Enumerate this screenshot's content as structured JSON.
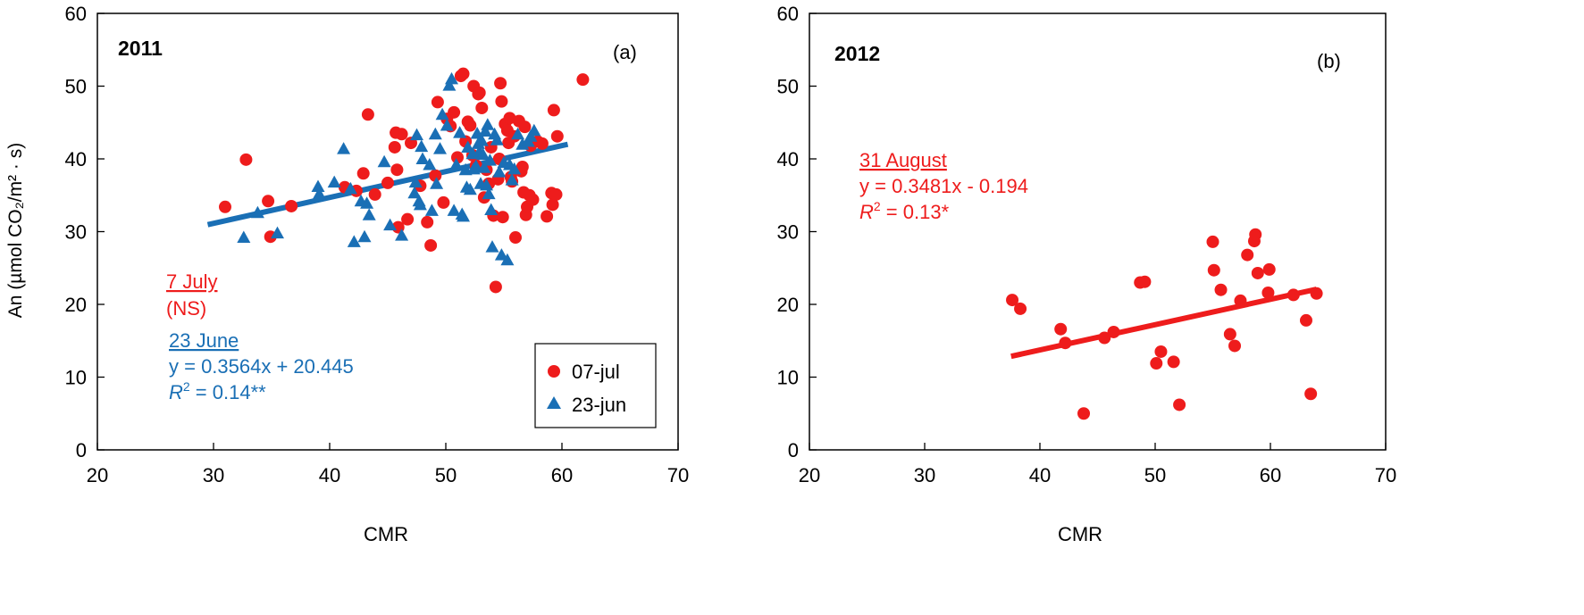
{
  "figure": {
    "shared_ylabel": "An (µmol CO₂/m² · s)"
  },
  "chart_data": [
    {
      "type": "scatter",
      "panel_label": "(a)",
      "year_label": "2011",
      "xlabel": "CMR",
      "xlim": [
        20,
        70
      ],
      "ylim": [
        0,
        60
      ],
      "xticks": [
        20,
        30,
        40,
        50,
        60,
        70
      ],
      "yticks": [
        0,
        10,
        20,
        30,
        40,
        50,
        60
      ],
      "legend": {
        "placement": "bottom-right",
        "entries": [
          "07-jul",
          "23-jun"
        ]
      },
      "annotations": {
        "jul_title": "7 July",
        "jul_note": "(NS)",
        "jun_title": "23 June",
        "jun_eq": "y = 0.3564x + 20.445",
        "jun_r2_label": "R",
        "jun_r2_sup": "2",
        "jun_r2_value": " = 0.14**"
      },
      "colors": {
        "jul": "#ee1c1c",
        "jun": "#1a6fb5"
      },
      "series": [
        {
          "name": "07-jul",
          "marker": "circle",
          "color": "#ee1c1c",
          "points": [
            [
              31,
              33.4
            ],
            [
              32.8,
              39.9
            ],
            [
              34.7,
              34.2
            ],
            [
              34.9,
              29.3
            ],
            [
              36.7,
              33.5
            ],
            [
              41.3,
              36.1
            ],
            [
              42.3,
              35.6
            ],
            [
              42.9,
              38
            ],
            [
              43.3,
              46.1
            ],
            [
              43.9,
              35.1
            ],
            [
              45,
              36.7
            ],
            [
              45.6,
              41.6
            ],
            [
              45.7,
              43.6
            ],
            [
              45.8,
              38.5
            ],
            [
              45.9,
              30.6
            ],
            [
              46.2,
              43.4
            ],
            [
              46.7,
              31.7
            ],
            [
              47,
              42.2
            ],
            [
              47.8,
              36.3
            ],
            [
              48.4,
              31.3
            ],
            [
              48.7,
              28.1
            ],
            [
              49.1,
              37.7
            ],
            [
              49.3,
              47.8
            ],
            [
              49.8,
              34
            ],
            [
              50.1,
              45.5
            ],
            [
              50.4,
              44.5
            ],
            [
              50.7,
              46.4
            ],
            [
              51,
              40.2
            ],
            [
              51.3,
              51.4
            ],
            [
              51.5,
              51.7
            ],
            [
              51.7,
              42.4
            ],
            [
              51.9,
              45.1
            ],
            [
              52.1,
              44.6
            ],
            [
              52.3,
              40.5
            ],
            [
              52.4,
              50
            ],
            [
              52.6,
              39.1
            ],
            [
              52.8,
              48.9
            ],
            [
              52.9,
              49.1
            ],
            [
              53.1,
              47
            ],
            [
              53.3,
              34.7
            ],
            [
              53.5,
              38.5
            ],
            [
              53.7,
              36.6
            ],
            [
              53.9,
              41.6
            ],
            [
              54.1,
              32.2
            ],
            [
              54.3,
              22.4
            ],
            [
              54.5,
              37.2
            ],
            [
              54.6,
              40
            ],
            [
              54.7,
              50.4
            ],
            [
              54.8,
              47.9
            ],
            [
              54.9,
              32
            ],
            [
              55.1,
              44.8
            ],
            [
              55.3,
              43.9
            ],
            [
              55.4,
              42.2
            ],
            [
              55.5,
              45.6
            ],
            [
              55.6,
              37.5
            ],
            [
              55.7,
              36.9
            ],
            [
              55.9,
              43.1
            ],
            [
              56,
              29.2
            ],
            [
              56.3,
              45.2
            ],
            [
              56.5,
              38.3
            ],
            [
              56.6,
              38.9
            ],
            [
              56.7,
              35.4
            ],
            [
              56.8,
              44.4
            ],
            [
              56.9,
              32.3
            ],
            [
              57,
              33.4
            ],
            [
              57.2,
              35
            ],
            [
              57.3,
              41.8
            ],
            [
              57.5,
              34.4
            ],
            [
              57.9,
              42.4
            ],
            [
              58.3,
              42.1
            ],
            [
              58.7,
              32.1
            ],
            [
              59.1,
              35.3
            ],
            [
              59.2,
              33.7
            ],
            [
              59.3,
              46.7
            ],
            [
              59.5,
              35.1
            ],
            [
              59.6,
              43.1
            ],
            [
              61.8,
              50.9
            ]
          ]
        },
        {
          "name": "23-jun",
          "marker": "triangle",
          "color": "#1a6fb5",
          "points": [
            [
              32.6,
              29.2
            ],
            [
              33.8,
              32.6
            ],
            [
              35.5,
              29.8
            ],
            [
              39,
              36.2
            ],
            [
              39.1,
              35.2
            ],
            [
              40.4,
              36.8
            ],
            [
              41.2,
              41.4
            ],
            [
              41.8,
              35.9
            ],
            [
              42.1,
              28.6
            ],
            [
              42.7,
              34.2
            ],
            [
              43,
              29.3
            ],
            [
              43.2,
              33.9
            ],
            [
              43.4,
              32.3
            ],
            [
              44.7,
              39.6
            ],
            [
              45.2,
              30.9
            ],
            [
              46.2,
              29.5
            ],
            [
              47.3,
              35.3
            ],
            [
              47.4,
              36.8
            ],
            [
              47.5,
              43.3
            ],
            [
              47.7,
              34.2
            ],
            [
              47.8,
              33.7
            ],
            [
              47.9,
              41.7
            ],
            [
              48,
              40
            ],
            [
              48.6,
              39.2
            ],
            [
              48.8,
              32.9
            ],
            [
              49.1,
              43.4
            ],
            [
              49.2,
              36.6
            ],
            [
              49.5,
              41.4
            ],
            [
              49.7,
              46.1
            ],
            [
              50.1,
              44.6
            ],
            [
              50.3,
              50.1
            ],
            [
              50.5,
              51
            ],
            [
              50.7,
              32.9
            ],
            [
              50.9,
              39.2
            ],
            [
              51.2,
              43.6
            ],
            [
              51.4,
              32.4
            ],
            [
              51.5,
              32.1
            ],
            [
              51.7,
              38.5
            ],
            [
              51.8,
              36.1
            ],
            [
              51.9,
              41.6
            ],
            [
              52.1,
              35.8
            ],
            [
              52.3,
              40.7
            ],
            [
              52.4,
              38.6
            ],
            [
              52.6,
              39
            ],
            [
              52.7,
              43.5
            ],
            [
              52.8,
              42.1
            ],
            [
              52.9,
              41
            ],
            [
              53,
              36.6
            ],
            [
              53.1,
              42.5
            ],
            [
              53.2,
              40.6
            ],
            [
              53.3,
              38.8
            ],
            [
              53.4,
              43.8
            ],
            [
              53.5,
              36.4
            ],
            [
              53.6,
              44.7
            ],
            [
              53.7,
              35.2
            ],
            [
              53.8,
              39.8
            ],
            [
              53.9,
              33
            ],
            [
              54,
              27.9
            ],
            [
              54.2,
              43.4
            ],
            [
              54.4,
              42.6
            ],
            [
              54.6,
              38.2
            ],
            [
              54.8,
              26.8
            ],
            [
              55,
              39.5
            ],
            [
              55.3,
              26.1
            ],
            [
              55.5,
              39.2
            ],
            [
              55.7,
              37.1
            ],
            [
              55.9,
              38.6
            ],
            [
              56.2,
              43.4
            ],
            [
              56.6,
              42
            ],
            [
              57.1,
              42.4
            ],
            [
              57.3,
              43.1
            ],
            [
              57.6,
              43.9
            ]
          ]
        }
      ],
      "trendlines": [
        {
          "series": "23-jun",
          "slope": 0.3564,
          "intercept": 20.445,
          "x_range": [
            29.5,
            60.5
          ],
          "color": "#1a6fb5"
        }
      ]
    },
    {
      "type": "scatter",
      "panel_label": "(b)",
      "year_label": "2012",
      "xlabel": "CMR",
      "xlim": [
        20,
        70
      ],
      "ylim": [
        0,
        60
      ],
      "xticks": [
        20,
        30,
        40,
        50,
        60,
        70
      ],
      "yticks": [
        0,
        10,
        20,
        30,
        40,
        50,
        60
      ],
      "annotations": {
        "aug_title": "31 August",
        "aug_eq": "y = 0.3481x - 0.194",
        "aug_r2_label": "R",
        "aug_r2_sup": "2",
        "aug_r2_value": " = 0.13*"
      },
      "colors": {
        "aug": "#ee1c1c"
      },
      "series": [
        {
          "name": "31 August",
          "marker": "circle",
          "color": "#ee1c1c",
          "points": [
            [
              37.6,
              20.6
            ],
            [
              38.3,
              19.4
            ],
            [
              41.8,
              16.6
            ],
            [
              42.2,
              14.7
            ],
            [
              43.8,
              5
            ],
            [
              45.6,
              15.4
            ],
            [
              46.4,
              16.2
            ],
            [
              48.7,
              23
            ],
            [
              49.1,
              23.1
            ],
            [
              50.1,
              11.9
            ],
            [
              50.5,
              13.5
            ],
            [
              51.6,
              12.1
            ],
            [
              52.1,
              6.2
            ],
            [
              55,
              28.6
            ],
            [
              55.1,
              24.7
            ],
            [
              55.7,
              22
            ],
            [
              56.5,
              15.9
            ],
            [
              56.9,
              14.3
            ],
            [
              57.4,
              20.5
            ],
            [
              58,
              26.8
            ],
            [
              58.6,
              28.7
            ],
            [
              58.7,
              29.6
            ],
            [
              58.9,
              24.3
            ],
            [
              59.8,
              21.6
            ],
            [
              59.9,
              24.8
            ],
            [
              62,
              21.3
            ],
            [
              63.1,
              17.8
            ],
            [
              63.5,
              7.7
            ],
            [
              64,
              21.5
            ]
          ]
        }
      ],
      "trendlines": [
        {
          "series": "31 August",
          "slope": 0.3481,
          "intercept": -0.194,
          "x_range": [
            37.5,
            64
          ],
          "color": "#ee1c1c"
        }
      ]
    }
  ]
}
